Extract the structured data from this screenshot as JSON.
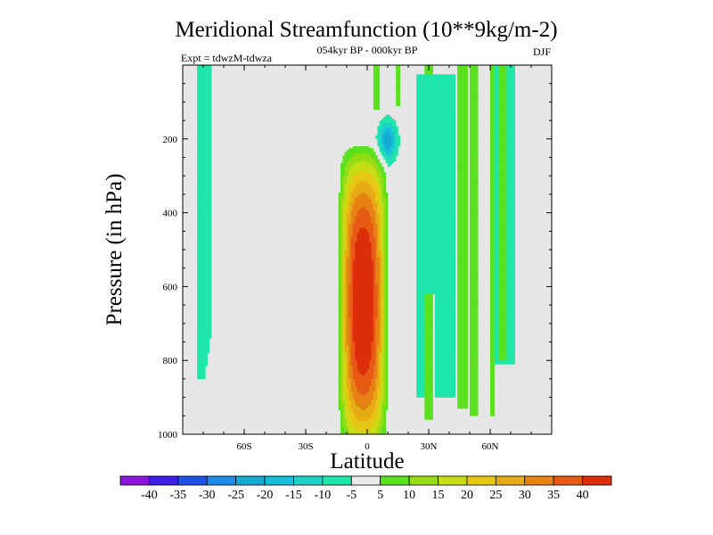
{
  "chart_data": {
    "type": "heatmap",
    "title": "Meridional Streamfunction (10**9kg/m-2)",
    "subtitle_left": "Expt = tdwzM-tdwza",
    "subtitle_center": "054kyr BP - 000kyr BP",
    "subtitle_right": "DJF",
    "xlabel": "Latitude",
    "ylabel": "Pressure (in hPa)",
    "xlim": [
      -90,
      90
    ],
    "ylim": [
      1000,
      0
    ],
    "x_ticks": [
      {
        "value": -60,
        "label": "60S"
      },
      {
        "value": -30,
        "label": "30S"
      },
      {
        "value": 0,
        "label": "0"
      },
      {
        "value": 30,
        "label": "30N"
      },
      {
        "value": 60,
        "label": "60N"
      }
    ],
    "y_ticks": [
      {
        "value": 200,
        "label": "200"
      },
      {
        "value": 400,
        "label": "400"
      },
      {
        "value": 600,
        "label": "600"
      },
      {
        "value": 800,
        "label": "800"
      },
      {
        "value": 1000,
        "label": "1000"
      }
    ],
    "background_color": "#e6e6e6",
    "colorbar": {
      "boundaries": [
        "-40",
        "-35",
        "-30",
        "-25",
        "-20",
        "-15",
        "-10",
        "-5",
        "5",
        "10",
        "15",
        "20",
        "25",
        "30",
        "35",
        "40"
      ],
      "colors": [
        "#8c14dc",
        "#3c1ee6",
        "#1e50e6",
        "#1e8ce6",
        "#14aad2",
        "#14bedc",
        "#1ed2c8",
        "#1ee6aa",
        "#ebebeb",
        "#5ae11e",
        "#96dc14",
        "#c8dc14",
        "#e6c814",
        "#e6aa14",
        "#e68214",
        "#e65a14",
        "#dc2d0a"
      ]
    },
    "features": [
      {
        "name": "positive-cell",
        "lat_range": [
          -12,
          18
        ],
        "p_range": [
          180,
          985
        ],
        "peak": 40,
        "peak_lat": -2,
        "peak_p": 650
      },
      {
        "name": "negative-upper-cell",
        "lat_range": [
          -2,
          22
        ],
        "p_range": [
          110,
          300
        ],
        "peak": -20,
        "peak_lat": 10,
        "peak_p": 200
      },
      {
        "name": "negative-strip-south",
        "lat_range": [
          -83,
          -76
        ],
        "p_range": [
          0,
          850
        ],
        "peak": -10
      },
      {
        "name": "negative-band-north",
        "lat_range": [
          24,
          43
        ],
        "p_range": [
          20,
          900
        ],
        "peak": -10
      },
      {
        "name": "positive-strips-north",
        "lat_range": [
          28,
          68
        ],
        "p_range": [
          0,
          960
        ],
        "peak": 10
      },
      {
        "name": "negative-strip-north",
        "lat_range": [
          61,
          73
        ],
        "p_range": [
          0,
          810
        ],
        "peak": -10
      }
    ]
  }
}
